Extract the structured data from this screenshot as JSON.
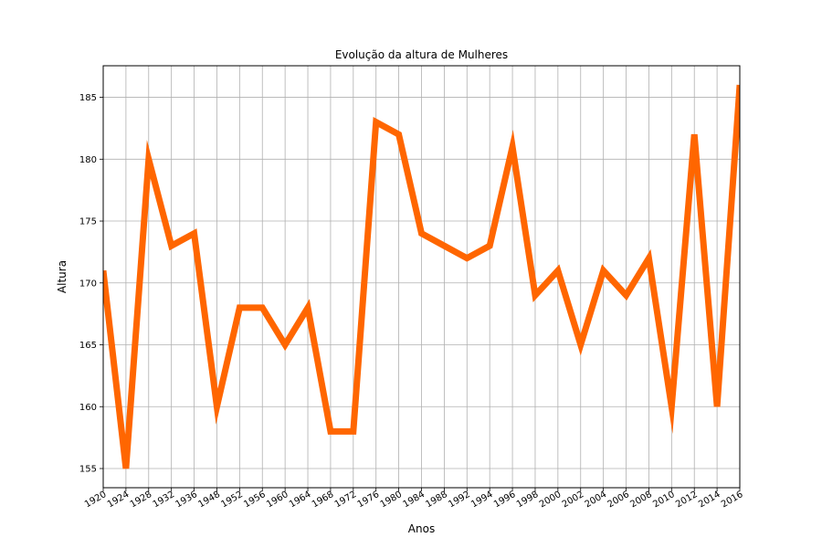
{
  "chart_data": {
    "type": "line",
    "title": "Evolução da altura de Mulheres",
    "xlabel": "Anos",
    "ylabel": "Altura",
    "categories": [
      "1920",
      "1924",
      "1928",
      "1932",
      "1936",
      "1948",
      "1952",
      "1956",
      "1960",
      "1964",
      "1968",
      "1972",
      "1976",
      "1980",
      "1984",
      "1988",
      "1992",
      "1994",
      "1996",
      "1998",
      "2000",
      "2002",
      "2004",
      "2006",
      "2008",
      "2010",
      "2012",
      "2014",
      "2016"
    ],
    "series": [
      {
        "values": [
          171,
          155,
          180,
          173,
          174,
          160,
          168,
          168,
          165,
          168,
          158,
          158,
          183,
          182,
          174,
          173,
          172,
          173,
          181,
          169,
          171,
          165,
          171,
          169,
          172,
          160,
          182,
          160,
          186
        ],
        "color": "#ff6600"
      }
    ],
    "yticks": [
      155,
      160,
      165,
      170,
      175,
      180,
      185
    ],
    "ylim": [
      153.45,
      187.55
    ],
    "grid": true,
    "line_color": "#ff6600",
    "grid_color": "#b0b0b0"
  }
}
